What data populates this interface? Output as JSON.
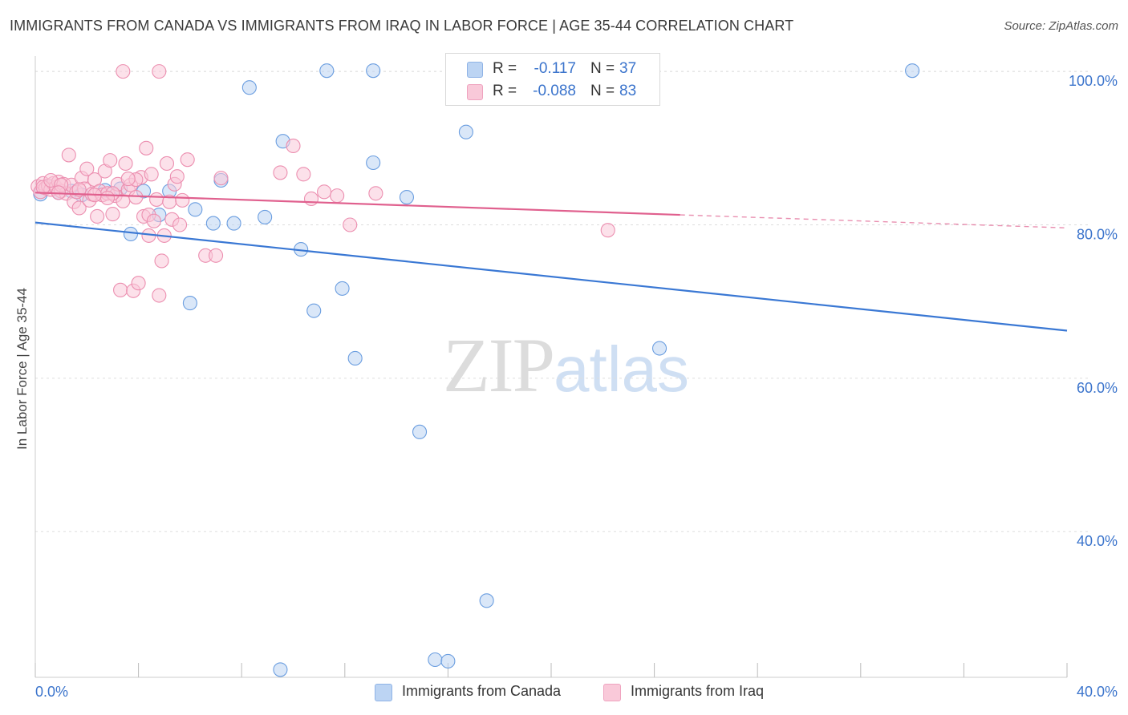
{
  "header": {
    "title": "IMMIGRANTS FROM CANADA VS IMMIGRANTS FROM IRAQ IN LABOR FORCE | AGE 35-44 CORRELATION CHART",
    "source": "Source: ZipAtlas.com"
  },
  "watermark": {
    "zip": "ZIP",
    "atlas": "atlas"
  },
  "legend": {
    "canada": {
      "r_label": "R =",
      "r_value": "-0.117",
      "n_label": "N =",
      "n_value": "37",
      "color": "#a9c8f0"
    },
    "iraq": {
      "r_label": "R =",
      "r_value": "-0.088",
      "n_label": "N =",
      "n_value": "83",
      "color": "#f6b8cc"
    }
  },
  "bottom_legend": {
    "canada": "Immigrants from Canada",
    "iraq": "Immigrants from Iraq"
  },
  "chart_data": {
    "type": "scatter",
    "title": "IMMIGRANTS FROM CANADA VS IMMIGRANTS FROM IRAQ IN LABOR FORCE | AGE 35-44 CORRELATION CHART",
    "xlabel": "",
    "ylabel": "In Labor Force | Age 35-44",
    "xlim": [
      0,
      40
    ],
    "ylim": [
      21,
      102
    ],
    "x_tick_labels": [
      "0.0%",
      "40.0%"
    ],
    "y_ticks": [
      40,
      60,
      80,
      100
    ],
    "y_tick_labels": [
      "40.0%",
      "60.0%",
      "80.0%",
      "100.0%"
    ],
    "grid": "horizontal dashed",
    "legend_position": "top-center",
    "series": [
      {
        "name": "Immigrants from Canada",
        "color": "#6b9ee0",
        "fill": "#bcd4f3",
        "trend": {
          "x": [
            0,
            40
          ],
          "y": [
            80.3,
            66.2
          ],
          "style": "solid",
          "color": "#3a78d4"
        },
        "points": [
          [
            0.2,
            84.0
          ],
          [
            0.5,
            85.0
          ],
          [
            0.9,
            84.2
          ],
          [
            1.4,
            84.4
          ],
          [
            2.7,
            84.5
          ],
          [
            3.3,
            84.7
          ],
          [
            4.2,
            84.4
          ],
          [
            4.8,
            81.3
          ],
          [
            5.2,
            84.4
          ],
          [
            6.0,
            69.8
          ],
          [
            6.2,
            82.0
          ],
          [
            6.9,
            80.2
          ],
          [
            7.2,
            85.8
          ],
          [
            7.7,
            80.2
          ],
          [
            8.3,
            97.9
          ],
          [
            8.9,
            81.0
          ],
          [
            9.5,
            22.0
          ],
          [
            9.6,
            90.9
          ],
          [
            10.3,
            76.8
          ],
          [
            11.3,
            100.1
          ],
          [
            10.8,
            68.8
          ],
          [
            11.9,
            71.7
          ],
          [
            12.4,
            62.6
          ],
          [
            13.1,
            88.1
          ],
          [
            13.1,
            100.1
          ],
          [
            14.4,
            83.6
          ],
          [
            14.9,
            53.0
          ],
          [
            15.5,
            23.3
          ],
          [
            16.0,
            23.1
          ],
          [
            16.7,
            92.1
          ],
          [
            17.5,
            31.0
          ],
          [
            17.9,
            97.2
          ],
          [
            20.8,
            100.0
          ],
          [
            24.2,
            63.9
          ],
          [
            34.0,
            100.1
          ],
          [
            3.7,
            78.8
          ],
          [
            1.8,
            83.9
          ]
        ]
      },
      {
        "name": "Immigrants from Iraq",
        "color": "#ec8fb0",
        "fill": "#f9c9d9",
        "trend": {
          "x": [
            0,
            25
          ],
          "y": [
            84.2,
            81.3
          ],
          "style": "solid",
          "color": "#e0608e",
          "dashed_to": [
            40,
            79.6
          ]
        },
        "points": [
          [
            0.1,
            85.0
          ],
          [
            0.2,
            84.3
          ],
          [
            0.3,
            85.4
          ],
          [
            0.4,
            84.8
          ],
          [
            0.5,
            85.1
          ],
          [
            0.6,
            84.6
          ],
          [
            0.7,
            85.4
          ],
          [
            0.8,
            84.9
          ],
          [
            0.9,
            85.6
          ],
          [
            1.0,
            84.4
          ],
          [
            1.1,
            85.3
          ],
          [
            1.2,
            84.1
          ],
          [
            1.3,
            89.1
          ],
          [
            1.4,
            85.2
          ],
          [
            1.5,
            83.0
          ],
          [
            1.6,
            84.3
          ],
          [
            1.7,
            82.2
          ],
          [
            1.8,
            86.1
          ],
          [
            1.9,
            84.7
          ],
          [
            2.0,
            87.3
          ],
          [
            2.1,
            83.2
          ],
          [
            2.2,
            84.0
          ],
          [
            2.3,
            85.9
          ],
          [
            2.4,
            81.1
          ],
          [
            2.5,
            84.4
          ],
          [
            2.6,
            83.9
          ],
          [
            2.7,
            87.0
          ],
          [
            2.8,
            84.1
          ],
          [
            2.9,
            88.4
          ],
          [
            3.0,
            81.4
          ],
          [
            3.1,
            83.8
          ],
          [
            3.2,
            85.3
          ],
          [
            3.3,
            71.5
          ],
          [
            3.4,
            83.1
          ],
          [
            3.5,
            88.0
          ],
          [
            3.6,
            84.6
          ],
          [
            3.7,
            85.2
          ],
          [
            3.8,
            71.4
          ],
          [
            3.9,
            83.6
          ],
          [
            4.0,
            72.4
          ],
          [
            4.1,
            86.2
          ],
          [
            4.2,
            81.1
          ],
          [
            4.3,
            90.0
          ],
          [
            4.4,
            81.3
          ],
          [
            4.5,
            86.6
          ],
          [
            4.6,
            80.5
          ],
          [
            4.7,
            83.3
          ],
          [
            4.8,
            70.8
          ],
          [
            4.9,
            75.3
          ],
          [
            5.0,
            78.6
          ],
          [
            5.1,
            88.0
          ],
          [
            5.2,
            83.0
          ],
          [
            5.3,
            80.7
          ],
          [
            5.4,
            85.3
          ],
          [
            5.5,
            86.3
          ],
          [
            5.6,
            80.0
          ],
          [
            5.7,
            83.2
          ],
          [
            5.9,
            88.5
          ],
          [
            6.6,
            76.0
          ],
          [
            7.0,
            76.0
          ],
          [
            7.2,
            86.1
          ],
          [
            9.5,
            86.8
          ],
          [
            10.0,
            90.3
          ],
          [
            10.4,
            86.6
          ],
          [
            10.7,
            83.4
          ],
          [
            11.2,
            84.3
          ],
          [
            11.7,
            83.8
          ],
          [
            12.2,
            80.0
          ],
          [
            13.2,
            84.1
          ],
          [
            22.2,
            79.3
          ],
          [
            3.4,
            100.0
          ],
          [
            4.8,
            100.0
          ],
          [
            0.3,
            84.9
          ],
          [
            0.6,
            85.8
          ],
          [
            1.0,
            85.2
          ],
          [
            2.3,
            83.9
          ],
          [
            3.0,
            84.1
          ],
          [
            3.9,
            85.9
          ],
          [
            4.4,
            78.6
          ],
          [
            2.8,
            83.5
          ],
          [
            1.7,
            84.6
          ],
          [
            0.9,
            84.2
          ],
          [
            3.6,
            86.0
          ]
        ]
      }
    ]
  }
}
